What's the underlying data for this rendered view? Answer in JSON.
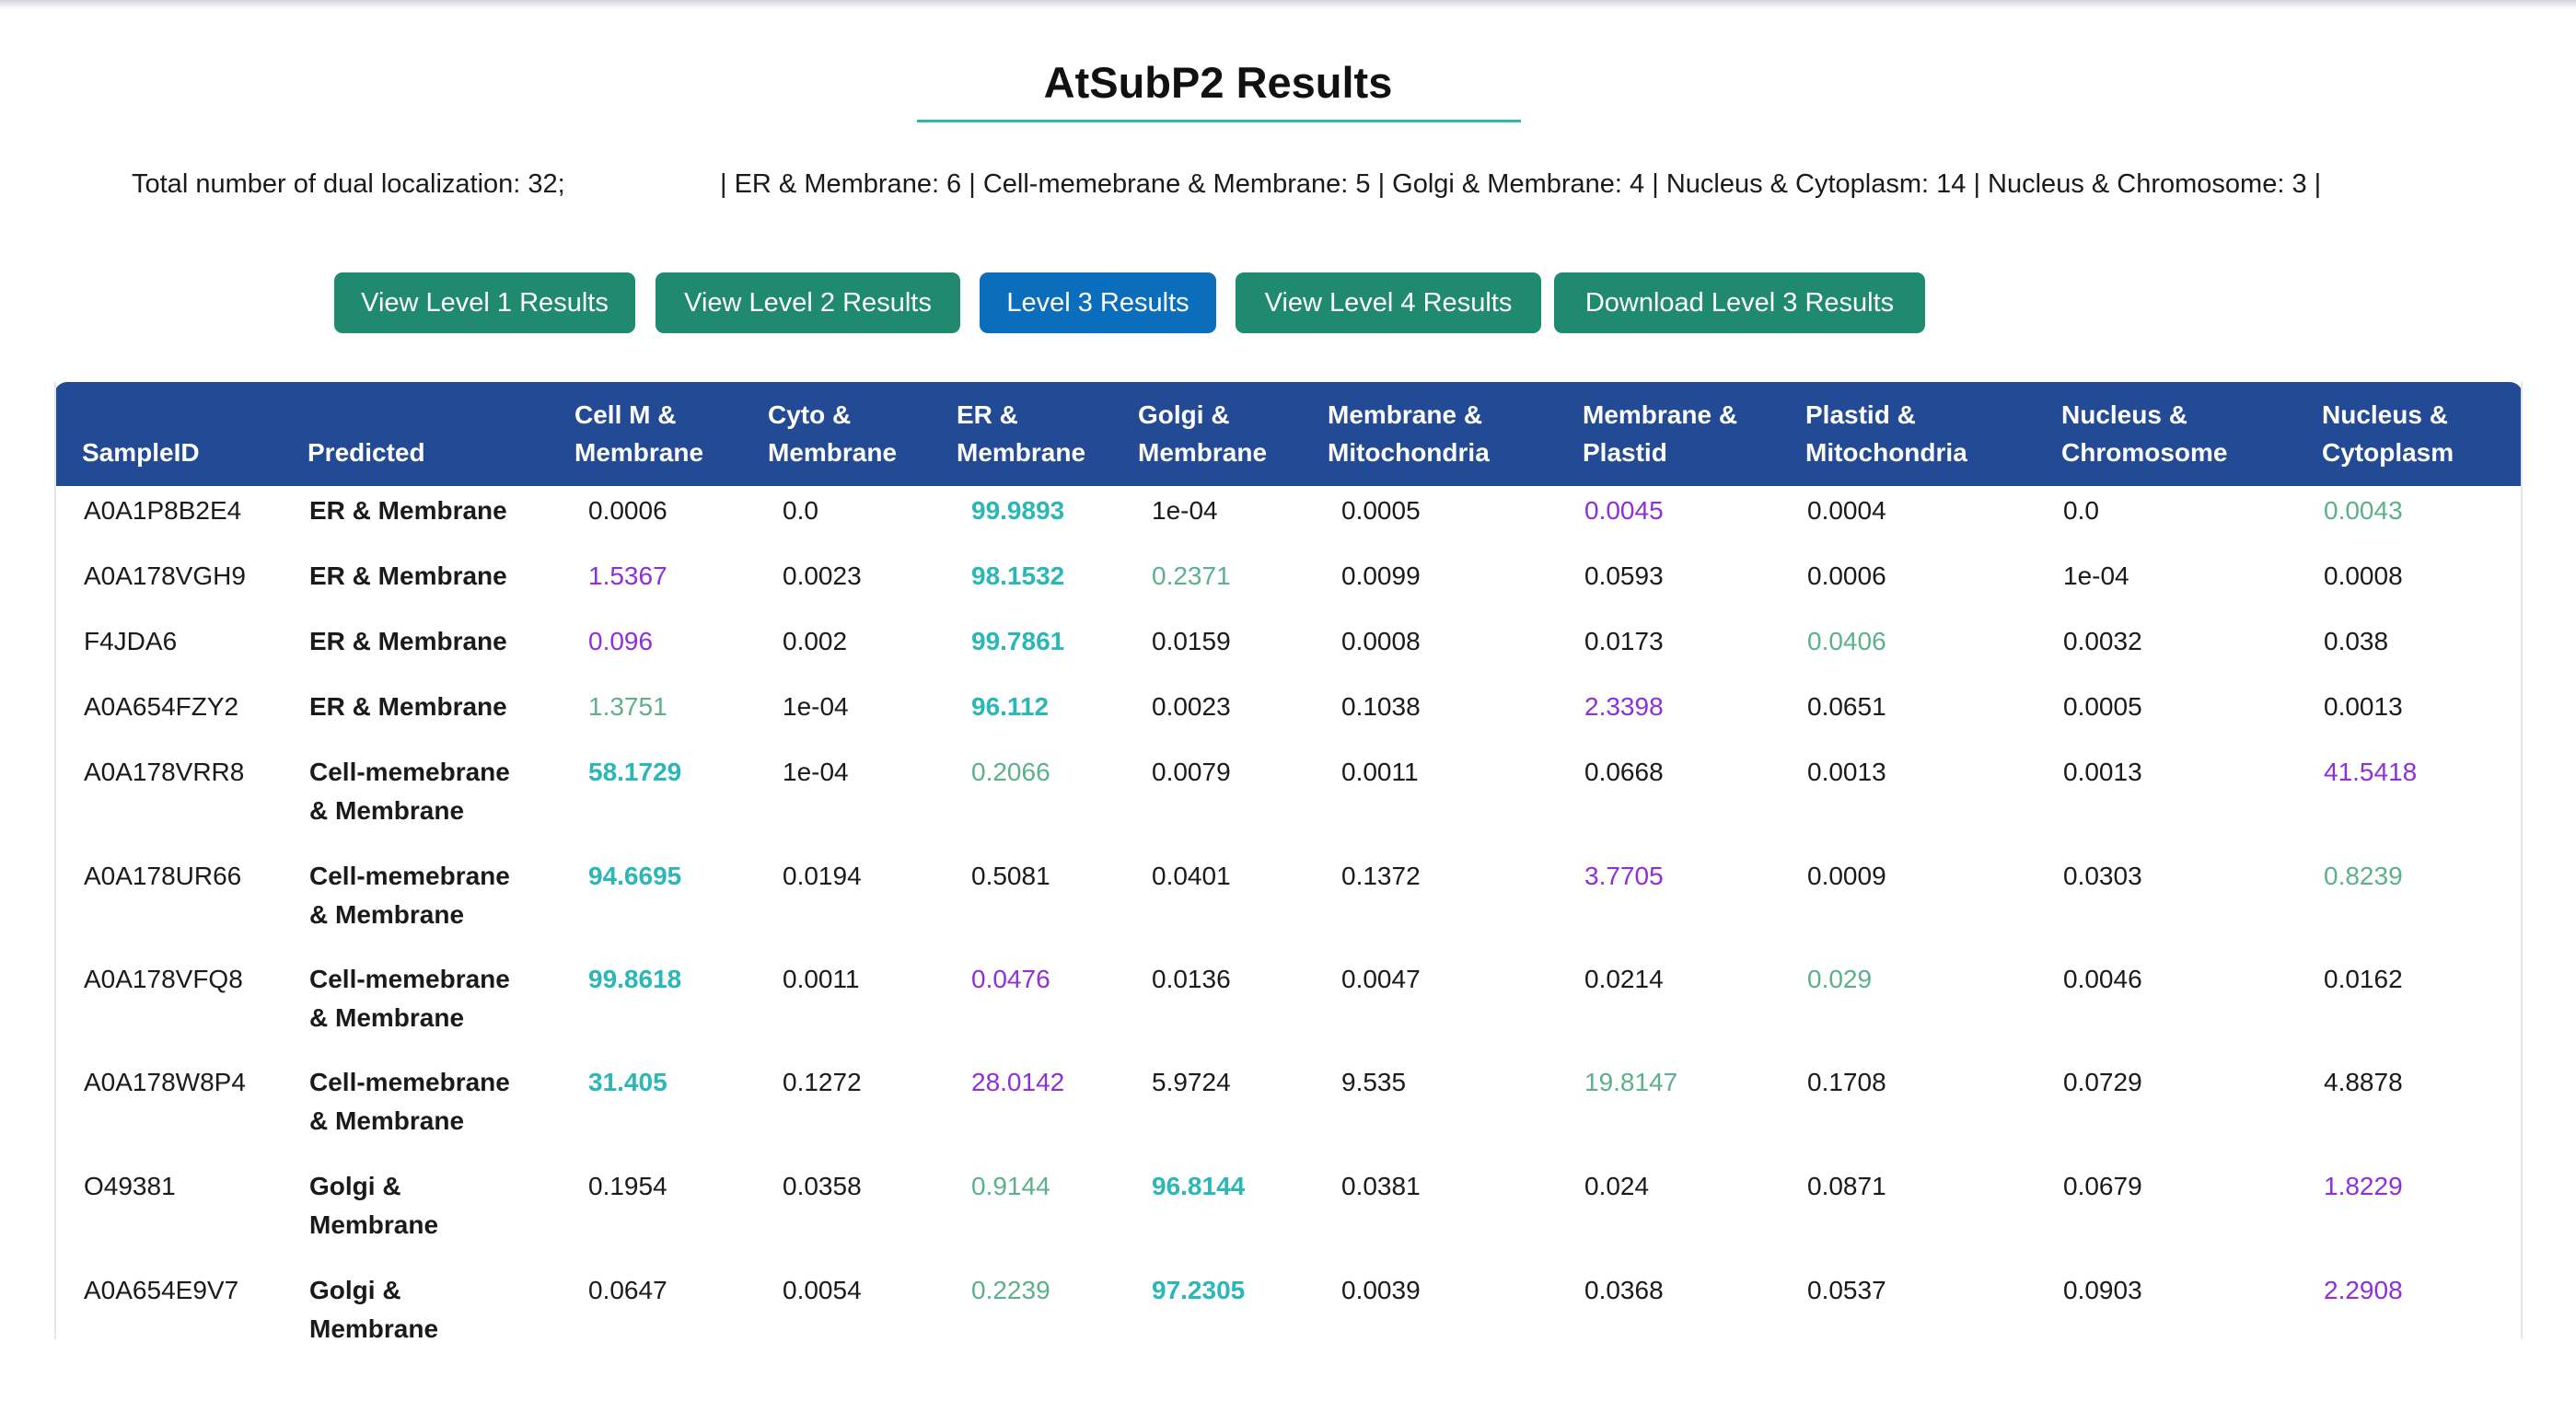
{
  "page": {
    "title": "AtSubP2 Results",
    "summary_total": "Total number of dual localization: 32;",
    "summary_detail": "| ER & Membrane: 6 | Cell-memebrane & Membrane: 5 | Golgi & Membrane: 4 | Nucleus & Cytoplasm: 14 | Nucleus & Chromosome: 3 |"
  },
  "buttons": [
    {
      "label": "View Level 1 Results",
      "active": false
    },
    {
      "label": "View Level 2 Results",
      "active": false
    },
    {
      "label": "Level 3 Results",
      "active": true
    },
    {
      "label": "View Level 4 Results",
      "active": false
    },
    {
      "label": "Download Level 3 Results",
      "active": false
    }
  ],
  "colors": {
    "header_bg": "#224a95",
    "button_bg": "#1f8a70",
    "button_active_bg": "#0a6ebd",
    "top_prediction": "#2bb7b7",
    "second_prediction": "#8e2fdc",
    "third_prediction": "#5cb08a"
  },
  "table": {
    "columns": [
      "SampleID",
      "Predicted",
      "Cell M &\nMembrane",
      "Cyto &\nMembrane",
      "ER &\nMembrane",
      "Golgi &\nMembrane",
      "Membrane &\nMitochondria",
      "Membrane &\nPlastid",
      "Plastid &\nMitochondria",
      "Nucleus &\nChromosome",
      "Nucleus &\nCytoplasm"
    ],
    "rows": [
      {
        "id": "A0A1P8B2E4",
        "pred": "ER & Membrane",
        "values": [
          "0.0006",
          "0.0",
          "99.9893",
          "1e-04",
          "0.0005",
          "0.0045",
          "0.0004",
          "0.0",
          "0.0043"
        ],
        "hl": [
          "n",
          "n",
          "t",
          "n",
          "n",
          "p",
          "n",
          "n",
          "g"
        ]
      },
      {
        "id": "A0A178VGH9",
        "pred": "ER & Membrane",
        "values": [
          "1.5367",
          "0.0023",
          "98.1532",
          "0.2371",
          "0.0099",
          "0.0593",
          "0.0006",
          "1e-04",
          "0.0008"
        ],
        "hl": [
          "p",
          "n",
          "t",
          "g",
          "n",
          "n",
          "n",
          "n",
          "n"
        ]
      },
      {
        "id": "F4JDA6",
        "pred": "ER & Membrane",
        "values": [
          "0.096",
          "0.002",
          "99.7861",
          "0.0159",
          "0.0008",
          "0.0173",
          "0.0406",
          "0.0032",
          "0.038"
        ],
        "hl": [
          "p",
          "n",
          "t",
          "n",
          "n",
          "n",
          "g",
          "n",
          "n"
        ]
      },
      {
        "id": "A0A654FZY2",
        "pred": "ER & Membrane",
        "values": [
          "1.3751",
          "1e-04",
          "96.112",
          "0.0023",
          "0.1038",
          "2.3398",
          "0.0651",
          "0.0005",
          "0.0013"
        ],
        "hl": [
          "g",
          "n",
          "t",
          "n",
          "n",
          "p",
          "n",
          "n",
          "n"
        ]
      },
      {
        "id": "A0A178VRR8",
        "pred": "Cell-memebrane\n& Membrane",
        "values": [
          "58.1729",
          "1e-04",
          "0.2066",
          "0.0079",
          "0.0011",
          "0.0668",
          "0.0013",
          "0.0013",
          "41.5418"
        ],
        "hl": [
          "t",
          "n",
          "g",
          "n",
          "n",
          "n",
          "n",
          "n",
          "p"
        ]
      },
      {
        "id": "A0A178UR66",
        "pred": "Cell-memebrane\n& Membrane",
        "values": [
          "94.6695",
          "0.0194",
          "0.5081",
          "0.0401",
          "0.1372",
          "3.7705",
          "0.0009",
          "0.0303",
          "0.8239"
        ],
        "hl": [
          "t",
          "n",
          "n",
          "n",
          "n",
          "p",
          "n",
          "n",
          "g"
        ]
      },
      {
        "id": "A0A178VFQ8",
        "pred": "Cell-memebrane\n& Membrane",
        "values": [
          "99.8618",
          "0.0011",
          "0.0476",
          "0.0136",
          "0.0047",
          "0.0214",
          "0.029",
          "0.0046",
          "0.0162"
        ],
        "hl": [
          "t",
          "n",
          "p",
          "n",
          "n",
          "n",
          "g",
          "n",
          "n"
        ]
      },
      {
        "id": "A0A178W8P4",
        "pred": "Cell-memebrane\n& Membrane",
        "values": [
          "31.405",
          "0.1272",
          "28.0142",
          "5.9724",
          "9.535",
          "19.8147",
          "0.1708",
          "0.0729",
          "4.8878"
        ],
        "hl": [
          "t",
          "n",
          "p",
          "n",
          "n",
          "g",
          "n",
          "n",
          "n"
        ]
      },
      {
        "id": "O49381",
        "pred": "Golgi &\nMembrane",
        "values": [
          "0.1954",
          "0.0358",
          "0.9144",
          "96.8144",
          "0.0381",
          "0.024",
          "0.0871",
          "0.0679",
          "1.8229"
        ],
        "hl": [
          "n",
          "n",
          "g",
          "t",
          "n",
          "n",
          "n",
          "n",
          "p"
        ]
      },
      {
        "id": "A0A654E9V7",
        "pred": "Golgi &\nMembrane",
        "values": [
          "0.0647",
          "0.0054",
          "0.2239",
          "97.2305",
          "0.0039",
          "0.0368",
          "0.0537",
          "0.0903",
          "2.2908"
        ],
        "hl": [
          "n",
          "n",
          "g",
          "t",
          "n",
          "n",
          "n",
          "n",
          "p"
        ]
      }
    ]
  }
}
